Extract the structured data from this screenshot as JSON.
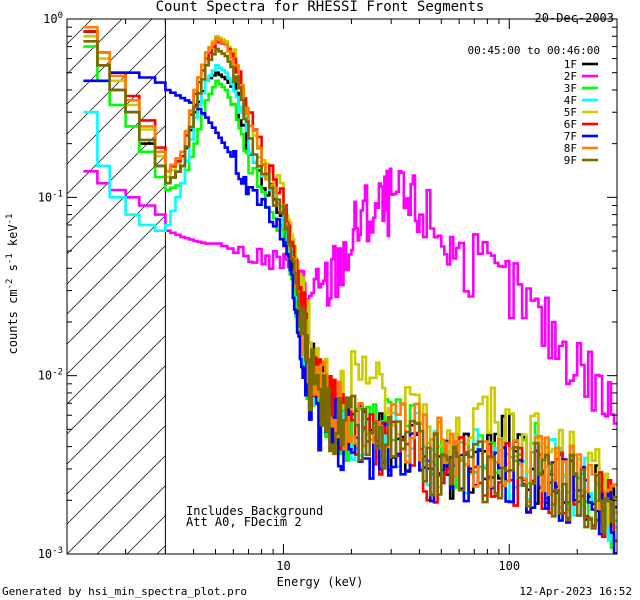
{
  "chart_data": {
    "type": "line",
    "title": "Count Spectra for RHESSI Front Segments",
    "xlabel": "Energy (keV)",
    "ylabel": {
      "base": "counts cm",
      "exp1": "-2",
      "mid": " s",
      "exp2": "-1",
      "end": " keV",
      "exp3": "-1"
    },
    "xscale": "log",
    "yscale": "log",
    "xlim": [
      1.1,
      300
    ],
    "ylim": [
      0.001,
      1.0
    ],
    "x_ticks": [
      {
        "value": 10,
        "label": "10"
      },
      {
        "value": 100,
        "label": "100"
      }
    ],
    "y_ticks": [
      {
        "value": 1,
        "label": "10",
        "exp": "0"
      },
      {
        "value": 0.1,
        "label": "10",
        "exp": "-1"
      },
      {
        "value": 0.01,
        "label": "10",
        "exp": "-2"
      },
      {
        "value": 0.001,
        "label": "10",
        "exp": "-3"
      }
    ],
    "date": "20-Dec-2003",
    "time_range": "00:45:00 to 00:46:00",
    "annotations": [
      "Includes Background",
      "Att A0, FDecim 2"
    ],
    "excluded_region": {
      "from": 1.1,
      "to": 3.0
    },
    "legend_position": "top-right",
    "series": [
      {
        "name": "1F",
        "color": "#000000",
        "x": [
          1.3,
          1.5,
          1.7,
          2.0,
          2.3,
          2.7,
          3.0,
          3.5,
          4.0,
          4.5,
          5.0,
          5.5,
          6.0,
          6.5,
          7.0,
          8.0,
          9.0,
          10.0,
          11.0,
          12.0,
          13.0,
          15.0,
          17.0,
          20.0,
          25.0,
          30.0,
          40.0,
          50.0,
          60.0,
          80.0,
          100.0,
          130.0,
          160.0,
          200.0,
          250.0,
          300.0
        ],
        "values": [
          0.85,
          0.55,
          0.4,
          0.3,
          0.2,
          0.15,
          0.12,
          0.15,
          0.3,
          0.45,
          0.5,
          0.46,
          0.4,
          0.26,
          0.18,
          0.12,
          0.1,
          0.07,
          0.04,
          0.018,
          0.01,
          0.008,
          0.006,
          0.005,
          0.004,
          0.004,
          0.0035,
          0.003,
          0.003,
          0.0035,
          0.004,
          0.003,
          0.003,
          0.0025,
          0.002,
          0.0015
        ]
      },
      {
        "name": "2F",
        "color": "#ff00ff",
        "x": [
          1.3,
          1.5,
          1.7,
          2.0,
          2.3,
          2.7,
          3.0,
          3.5,
          4.0,
          4.5,
          5.0,
          6.0,
          7.0,
          8.0,
          9.0,
          10.0,
          11.0,
          12.0,
          13.0,
          15.0,
          17.0,
          20.0,
          22.0,
          25.0,
          28.0,
          30.0,
          35.0,
          40.0,
          50.0,
          60.0,
          80.0,
          100.0,
          130.0,
          160.0,
          200.0,
          250.0,
          300.0
        ],
        "values": [
          0.14,
          0.12,
          0.11,
          0.1,
          0.09,
          0.08,
          0.065,
          0.06,
          0.057,
          0.055,
          0.055,
          0.05,
          0.047,
          0.045,
          0.044,
          0.044,
          0.043,
          0.032,
          0.025,
          0.03,
          0.04,
          0.06,
          0.075,
          0.085,
          0.09,
          0.1,
          0.09,
          0.085,
          0.06,
          0.045,
          0.035,
          0.03,
          0.021,
          0.016,
          0.012,
          0.008,
          0.006
        ]
      },
      {
        "name": "3F",
        "color": "#00ff00",
        "x": [
          1.3,
          1.5,
          1.7,
          2.0,
          2.3,
          2.7,
          3.0,
          3.5,
          4.0,
          4.5,
          5.0,
          5.5,
          6.0,
          6.5,
          7.0,
          8.0,
          9.0,
          10.0,
          11.0,
          12.0,
          13.0,
          15.0,
          17.0,
          20.0,
          25.0,
          30.0,
          40.0,
          50.0,
          60.0,
          80.0,
          100.0,
          130.0,
          160.0,
          200.0,
          250.0,
          300.0
        ],
        "values": [
          0.7,
          0.45,
          0.33,
          0.25,
          0.18,
          0.13,
          0.11,
          0.12,
          0.2,
          0.35,
          0.45,
          0.4,
          0.3,
          0.2,
          0.15,
          0.1,
          0.08,
          0.06,
          0.03,
          0.015,
          0.009,
          0.007,
          0.005,
          0.005,
          0.006,
          0.005,
          0.0045,
          0.004,
          0.0035,
          0.004,
          0.004,
          0.0035,
          0.003,
          0.0025,
          0.002,
          0.0015
        ]
      },
      {
        "name": "4F",
        "color": "#00ffff",
        "x": [
          1.3,
          1.5,
          1.7,
          2.0,
          2.3,
          2.7,
          3.0,
          3.5,
          4.0,
          4.5,
          5.0,
          5.5,
          6.0,
          6.5,
          7.0,
          8.0,
          9.0,
          10.0,
          11.0,
          12.0,
          13.0,
          15.0,
          17.0,
          20.0,
          25.0,
          30.0,
          40.0,
          50.0,
          60.0,
          80.0,
          100.0,
          130.0,
          160.0,
          200.0,
          250.0,
          300.0
        ],
        "values": [
          0.3,
          0.15,
          0.1,
          0.08,
          0.07,
          0.065,
          0.07,
          0.12,
          0.28,
          0.45,
          0.55,
          0.5,
          0.4,
          0.3,
          0.2,
          0.13,
          0.1,
          0.075,
          0.04,
          0.02,
          0.01,
          0.008,
          0.006,
          0.005,
          0.005,
          0.0045,
          0.004,
          0.0035,
          0.0035,
          0.003,
          0.003,
          0.003,
          0.0028,
          0.0025,
          0.002,
          0.0015
        ]
      },
      {
        "name": "5F",
        "color": "#cccc00",
        "x": [
          1.3,
          1.5,
          1.7,
          2.0,
          2.3,
          2.7,
          3.0,
          3.5,
          4.0,
          4.5,
          5.0,
          5.5,
          6.0,
          6.5,
          7.0,
          8.0,
          9.0,
          10.0,
          11.0,
          12.0,
          13.0,
          15.0,
          17.0,
          20.0,
          25.0,
          30.0,
          40.0,
          50.0,
          60.0,
          80.0,
          100.0,
          130.0,
          160.0,
          200.0,
          250.0,
          300.0
        ],
        "values": [
          0.8,
          0.6,
          0.45,
          0.33,
          0.24,
          0.17,
          0.13,
          0.17,
          0.4,
          0.65,
          0.8,
          0.75,
          0.6,
          0.4,
          0.27,
          0.17,
          0.13,
          0.1,
          0.06,
          0.03,
          0.015,
          0.01,
          0.008,
          0.01,
          0.008,
          0.006,
          0.005,
          0.005,
          0.0045,
          0.006,
          0.005,
          0.004,
          0.0035,
          0.003,
          0.0025,
          0.002
        ]
      },
      {
        "name": "6F",
        "color": "#ff0000",
        "x": [
          1.3,
          1.5,
          1.7,
          2.0,
          2.3,
          2.7,
          3.0,
          3.5,
          4.0,
          4.5,
          5.0,
          5.5,
          6.0,
          6.5,
          7.0,
          8.0,
          9.0,
          10.0,
          11.0,
          12.0,
          13.0,
          15.0,
          17.0,
          20.0,
          25.0,
          30.0,
          40.0,
          50.0,
          60.0,
          80.0,
          100.0,
          130.0,
          160.0,
          200.0,
          250.0,
          300.0
        ],
        "values": [
          0.85,
          0.65,
          0.5,
          0.37,
          0.27,
          0.19,
          0.14,
          0.17,
          0.38,
          0.6,
          0.75,
          0.72,
          0.6,
          0.42,
          0.28,
          0.17,
          0.12,
          0.09,
          0.05,
          0.025,
          0.012,
          0.008,
          0.006,
          0.005,
          0.004,
          0.004,
          0.003,
          0.0028,
          0.003,
          0.003,
          0.0028,
          0.0025,
          0.0025,
          0.0022,
          0.002,
          0.0015
        ]
      },
      {
        "name": "7F",
        "color": "#0000ff",
        "x": [
          1.3,
          1.5,
          1.7,
          2.0,
          2.3,
          2.7,
          3.0,
          3.5,
          4.0,
          4.5,
          5.0,
          5.5,
          6.0,
          6.5,
          7.0,
          8.0,
          9.0,
          10.0,
          11.0,
          12.0,
          13.0,
          15.0,
          17.0,
          20.0,
          25.0,
          30.0,
          40.0,
          50.0,
          60.0,
          80.0,
          100.0,
          130.0,
          160.0,
          200.0,
          250.0,
          300.0
        ],
        "values": [
          0.45,
          0.45,
          0.5,
          0.5,
          0.47,
          0.44,
          0.4,
          0.36,
          0.33,
          0.28,
          0.23,
          0.19,
          0.16,
          0.13,
          0.11,
          0.09,
          0.075,
          0.06,
          0.03,
          0.012,
          0.007,
          0.005,
          0.005,
          0.004,
          0.0035,
          0.0035,
          0.003,
          0.003,
          0.003,
          0.0028,
          0.0028,
          0.0025,
          0.0025,
          0.002,
          0.0018,
          0.0014
        ]
      },
      {
        "name": "8F",
        "color": "#ff8000",
        "x": [
          1.3,
          1.5,
          1.7,
          2.0,
          2.3,
          2.7,
          3.0,
          3.5,
          4.0,
          4.5,
          5.0,
          5.5,
          6.0,
          6.5,
          7.0,
          8.0,
          9.0,
          10.0,
          11.0,
          12.0,
          13.0,
          15.0,
          17.0,
          20.0,
          25.0,
          30.0,
          40.0,
          50.0,
          60.0,
          80.0,
          100.0,
          130.0,
          160.0,
          200.0,
          250.0,
          300.0
        ],
        "values": [
          0.9,
          0.65,
          0.48,
          0.35,
          0.25,
          0.18,
          0.14,
          0.18,
          0.4,
          0.65,
          0.78,
          0.72,
          0.55,
          0.38,
          0.25,
          0.15,
          0.11,
          0.08,
          0.045,
          0.02,
          0.011,
          0.008,
          0.006,
          0.006,
          0.005,
          0.005,
          0.0045,
          0.004,
          0.0035,
          0.0035,
          0.003,
          0.003,
          0.0028,
          0.0025,
          0.002,
          0.0015
        ]
      },
      {
        "name": "9F",
        "color": "#7a6a00",
        "x": [
          1.3,
          1.5,
          1.7,
          2.0,
          2.3,
          2.7,
          3.0,
          3.5,
          4.0,
          4.5,
          5.0,
          5.5,
          6.0,
          6.5,
          7.0,
          8.0,
          9.0,
          10.0,
          11.0,
          12.0,
          13.0,
          15.0,
          17.0,
          20.0,
          25.0,
          30.0,
          40.0,
          50.0,
          60.0,
          80.0,
          100.0,
          130.0,
          160.0,
          200.0,
          250.0,
          300.0
        ],
        "values": [
          0.75,
          0.55,
          0.4,
          0.3,
          0.21,
          0.15,
          0.12,
          0.15,
          0.32,
          0.55,
          0.68,
          0.62,
          0.5,
          0.33,
          0.22,
          0.14,
          0.1,
          0.08,
          0.04,
          0.018,
          0.01,
          0.007,
          0.005,
          0.005,
          0.004,
          0.004,
          0.0035,
          0.003,
          0.003,
          0.003,
          0.003,
          0.0028,
          0.0025,
          0.0022,
          0.0018,
          0.0014
        ]
      }
    ]
  },
  "footer": {
    "generated_by": "Generated by hsi_min_spectra_plot.pro",
    "timestamp": "12-Apr-2023 16:52"
  }
}
